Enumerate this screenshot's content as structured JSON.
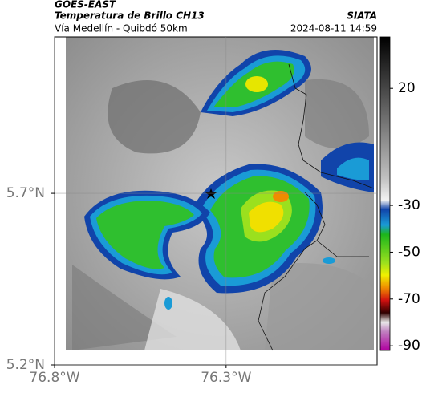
{
  "header": {
    "source": "GOES-EAST",
    "title": "Temperatura de Brillo CH13",
    "subtitle": "Vía Medellín - Quibdó 50km",
    "org": "SIATA",
    "datetime": "2024-08-11 14:59"
  },
  "map": {
    "xlim": [
      -76.8,
      -75.86
    ],
    "ylim": [
      5.2,
      6.156
    ],
    "xticks": [
      {
        "value": -76.8,
        "label": "76.8°W"
      },
      {
        "value": -76.3,
        "label": "76.3°W"
      }
    ],
    "yticks": [
      {
        "value": 5.7,
        "label": "5.7°N"
      },
      {
        "value": 5.2,
        "label": "5.2°N"
      }
    ],
    "grid": true
  },
  "colorbar": {
    "lim": [
      42,
      -92
    ],
    "ticks": [
      20,
      -30,
      -50,
      -70,
      -90
    ]
  }
}
